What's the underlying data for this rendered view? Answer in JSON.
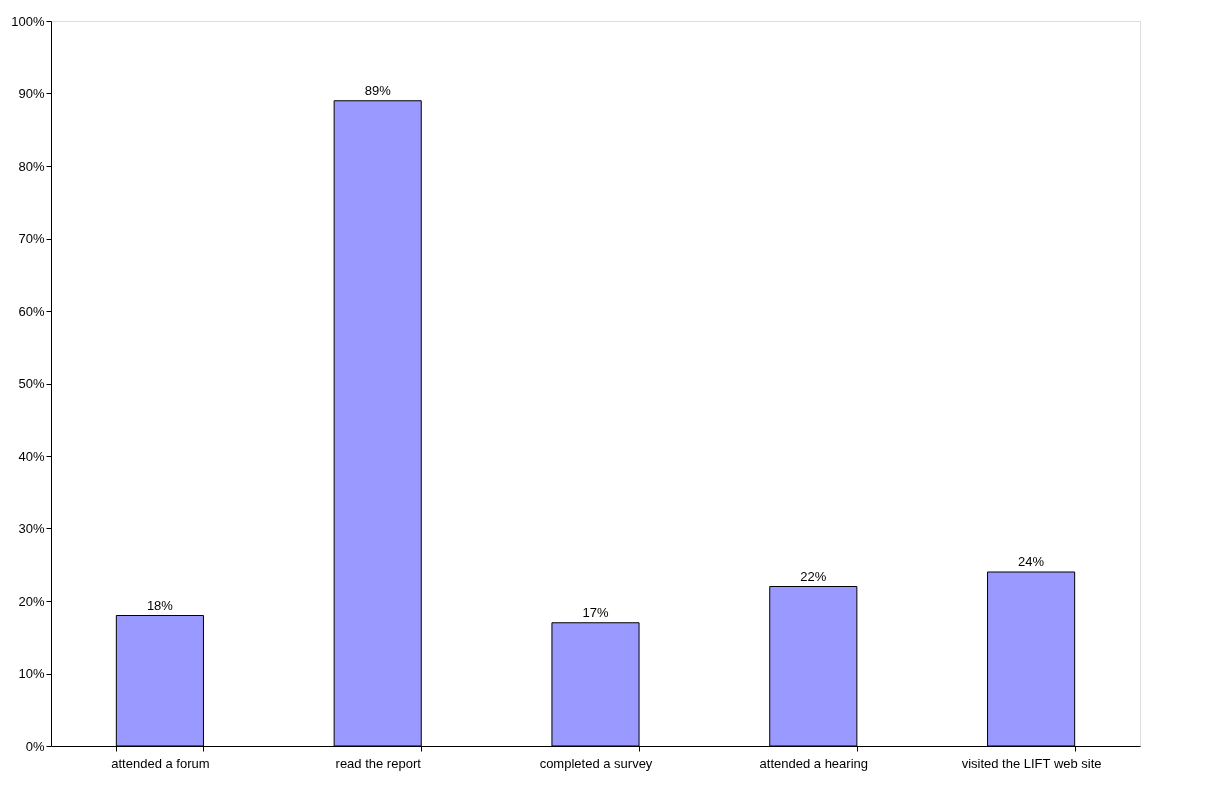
{
  "chart_data": {
    "type": "bar",
    "categories": [
      "attended a forum",
      "read the report",
      "completed a survey",
      "attended a hearing",
      "visited the LIFT web site"
    ],
    "values": [
      18,
      89,
      17,
      22,
      24
    ],
    "value_labels": [
      "18%",
      "89%",
      "17%",
      "22%",
      "24%"
    ],
    "color": "#9999ff",
    "ylim": [
      0,
      100
    ],
    "yticks": [
      {
        "value": 0,
        "label": "0%"
      },
      {
        "value": 10,
        "label": "10%"
      },
      {
        "value": 20,
        "label": "20%"
      },
      {
        "value": 30,
        "label": "30%"
      },
      {
        "value": 40,
        "label": "40%"
      },
      {
        "value": 50,
        "label": "50%"
      },
      {
        "value": 60,
        "label": "60%"
      },
      {
        "value": 70,
        "label": "70%"
      },
      {
        "value": 80,
        "label": "80%"
      },
      {
        "value": 90,
        "label": "90%"
      },
      {
        "value": 100,
        "label": "100%"
      }
    ],
    "grid": false
  }
}
